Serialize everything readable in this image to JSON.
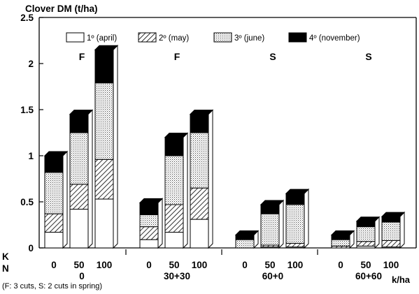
{
  "chart_data": {
    "type": "bar",
    "stacked": true,
    "three_d": true,
    "title": "Clover DM (t/ha)",
    "ylim": [
      0,
      2.5
    ],
    "yticks": [
      "0",
      "0.5",
      "1",
      "1.5",
      "2",
      "2.5"
    ],
    "row_labels": {
      "k": "K",
      "n": "N"
    },
    "unit_label": "k/ha",
    "footnote": "(F: 3 cuts, S: 2 cuts in spring)",
    "legend_position": "top",
    "series": [
      {
        "name": "1º (april)",
        "fill": "white"
      },
      {
        "name": "2º (may)",
        "fill": "hatch"
      },
      {
        "name": "3º (june)",
        "fill": "dots"
      },
      {
        "name": "4º (november)",
        "fill": "black"
      }
    ],
    "groups": [
      {
        "label": "F",
        "n_label": "0",
        "bars": [
          {
            "k": "0",
            "values": [
              0.17,
              0.2,
              0.45,
              0.18
            ]
          },
          {
            "k": "50",
            "values": [
              0.42,
              0.27,
              0.56,
              0.2
            ]
          },
          {
            "k": "100",
            "values": [
              0.53,
              0.43,
              0.83,
              0.36
            ]
          }
        ]
      },
      {
        "label": "F",
        "n_label": "30+30",
        "bars": [
          {
            "k": "0",
            "values": [
              0.09,
              0.14,
              0.13,
              0.13
            ]
          },
          {
            "k": "50",
            "values": [
              0.17,
              0.3,
              0.53,
              0.2
            ]
          },
          {
            "k": "100",
            "values": [
              0.31,
              0.34,
              0.6,
              0.2
            ]
          }
        ]
      },
      {
        "label": "S",
        "n_label": "60+0",
        "bars": [
          {
            "k": "0",
            "values": [
              0.0,
              0.0,
              0.09,
              0.05
            ]
          },
          {
            "k": "50",
            "values": [
              0.01,
              0.02,
              0.34,
              0.1
            ]
          },
          {
            "k": "100",
            "values": [
              0.01,
              0.04,
              0.42,
              0.12
            ]
          }
        ]
      },
      {
        "label": "S",
        "n_label": "60+60",
        "bars": [
          {
            "k": "0",
            "values": [
              0.0,
              0.02,
              0.07,
              0.05
            ]
          },
          {
            "k": "50",
            "values": [
              0.02,
              0.05,
              0.16,
              0.06
            ]
          },
          {
            "k": "100",
            "values": [
              0.01,
              0.07,
              0.2,
              0.06
            ]
          }
        ]
      }
    ]
  }
}
